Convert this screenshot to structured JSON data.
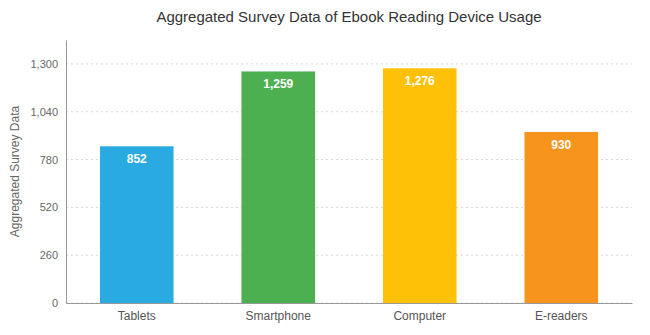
{
  "chart_data": {
    "type": "bar",
    "title": "Aggregated Survey Data of Ebook Reading Device Usage",
    "ylabel": "Aggregated Survey Data",
    "categories": [
      "Tablets",
      "Smartphone",
      "Computer",
      "E-readers"
    ],
    "values": [
      852,
      1259,
      1276,
      930
    ],
    "value_labels": [
      "852",
      "1,259",
      "1,276",
      "930"
    ],
    "colors": [
      "#29ABE2",
      "#4CAF50",
      "#FFC107",
      "#F7941D"
    ],
    "ylim": [
      0,
      1430
    ],
    "yticks": [
      0,
      260,
      520,
      780,
      {
        "value": 1040,
        "label": "1,040"
      },
      {
        "value": 1300,
        "label": "1,300"
      }
    ],
    "grid": true,
    "data_labels": true
  }
}
